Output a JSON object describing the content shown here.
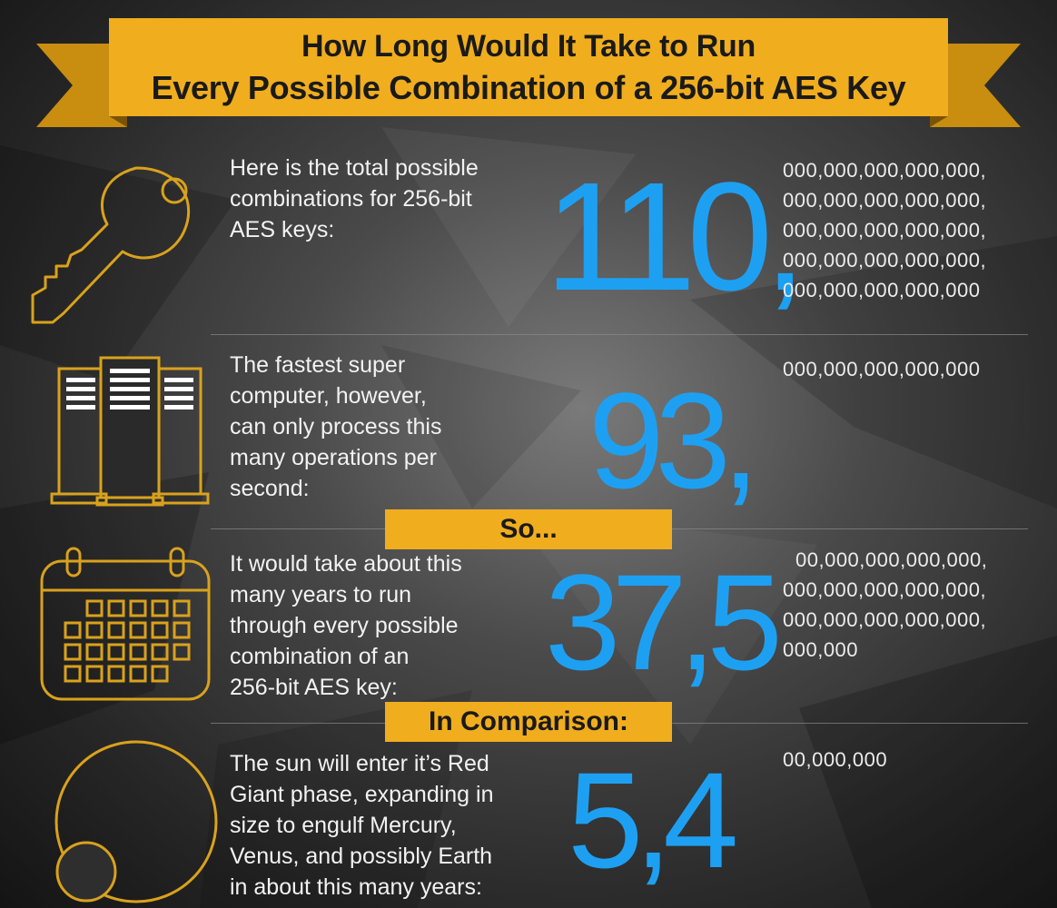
{
  "title": {
    "line1": "How Long Would It Take to Run",
    "line2": "Every Possible Combination of a 256-bit AES Key"
  },
  "sections": [
    {
      "icon": "key-icon",
      "description": [
        "Here is the total possible",
        "combinations for 256-bit",
        "AES keys:"
      ],
      "big_number": "110,",
      "zeros": [
        "000,000,000,000,000,",
        "000,000,000,000,000,",
        "000,000,000,000,000,",
        "000,000,000,000,000,",
        "000,000,000,000,000"
      ]
    },
    {
      "icon": "server-icon",
      "description": [
        "The fastest super",
        "computer, however,",
        "can only process this",
        "many operations per",
        "second:"
      ],
      "big_number": "93,",
      "zeros": [
        "000,000,000,000,000"
      ]
    },
    {
      "icon": "calendar-icon",
      "description": [
        "It would take about this",
        "many years to run",
        "through every possible",
        "combination of an",
        "256-bit AES key:"
      ],
      "big_number": "37,5",
      "zeros": [
        "00,000,000,000,000,",
        "000,000,000,000,000,",
        "000,000,000,000,000,",
        "000,000"
      ]
    },
    {
      "icon": "sun-planet-icon",
      "description": [
        "The sun will enter it’s Red",
        "Giant phase, expanding in",
        "size to engulf Mercury,",
        "Venus, and possibly Earth",
        "in about this many years:"
      ],
      "big_number": "5,4",
      "zeros": [
        "00,000,000"
      ]
    }
  ],
  "labels": {
    "so": "So...",
    "comparison": "In Comparison:"
  },
  "colors": {
    "accent_gold": "#f0ad1e",
    "number_blue": "#1ea0f2",
    "background": "#2a2a2a"
  }
}
